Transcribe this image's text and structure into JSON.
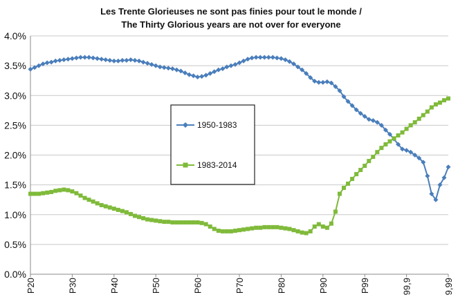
{
  "chart_data": {
    "type": "line",
    "title_lines": [
      "Les Trente Glorieuses ne sont pas finies pour tout le monde /",
      "The Thirty Glorious years are not over for everyone"
    ],
    "xlabel": "",
    "ylabel": "",
    "ylim": [
      0,
      4.0
    ],
    "y_ticks": [
      "0.0%",
      "0.5%",
      "1.0%",
      "1.5%",
      "2.0%",
      "2.5%",
      "3.0%",
      "3.5%",
      "4.0%"
    ],
    "x_tick_labels": [
      "P20",
      "P30",
      "P40",
      "P50",
      "P60",
      "P70",
      "P80",
      "P90",
      "P99",
      "99,9",
      "9,99"
    ],
    "grid": "horizontal",
    "legend_position": "center",
    "series": [
      {
        "name": "1950-1983",
        "color": "#4a7ebb",
        "marker": "diamond",
        "values": [
          [
            0,
            3.44
          ],
          [
            1,
            3.47
          ],
          [
            2,
            3.5
          ],
          [
            3,
            3.53
          ],
          [
            4,
            3.55
          ],
          [
            5,
            3.56
          ],
          [
            6,
            3.58
          ],
          [
            7,
            3.59
          ],
          [
            8,
            3.6
          ],
          [
            9,
            3.61
          ],
          [
            10,
            3.62
          ],
          [
            11,
            3.63
          ],
          [
            12,
            3.64
          ],
          [
            13,
            3.64
          ],
          [
            14,
            3.64
          ],
          [
            15,
            3.63
          ],
          [
            16,
            3.62
          ],
          [
            17,
            3.61
          ],
          [
            18,
            3.6
          ],
          [
            19,
            3.59
          ],
          [
            20,
            3.58
          ],
          [
            21,
            3.58
          ],
          [
            22,
            3.59
          ],
          [
            23,
            3.59
          ],
          [
            24,
            3.6
          ],
          [
            25,
            3.59
          ],
          [
            26,
            3.58
          ],
          [
            27,
            3.56
          ],
          [
            28,
            3.54
          ],
          [
            29,
            3.52
          ],
          [
            30,
            3.5
          ],
          [
            31,
            3.48
          ],
          [
            32,
            3.47
          ],
          [
            33,
            3.46
          ],
          [
            34,
            3.45
          ],
          [
            35,
            3.43
          ],
          [
            36,
            3.41
          ],
          [
            37,
            3.38
          ],
          [
            38,
            3.35
          ],
          [
            39,
            3.33
          ],
          [
            40,
            3.31
          ],
          [
            41,
            3.32
          ],
          [
            42,
            3.34
          ],
          [
            43,
            3.37
          ],
          [
            44,
            3.4
          ],
          [
            45,
            3.43
          ],
          [
            46,
            3.45
          ],
          [
            47,
            3.48
          ],
          [
            48,
            3.5
          ],
          [
            49,
            3.52
          ],
          [
            50,
            3.55
          ],
          [
            51,
            3.58
          ],
          [
            52,
            3.61
          ],
          [
            53,
            3.63
          ],
          [
            54,
            3.64
          ],
          [
            55,
            3.64
          ],
          [
            56,
            3.64
          ],
          [
            57,
            3.64
          ],
          [
            58,
            3.64
          ],
          [
            59,
            3.63
          ],
          [
            60,
            3.62
          ],
          [
            61,
            3.6
          ],
          [
            62,
            3.57
          ],
          [
            63,
            3.53
          ],
          [
            64,
            3.48
          ],
          [
            65,
            3.43
          ],
          [
            66,
            3.37
          ],
          [
            67,
            3.3
          ],
          [
            68,
            3.24
          ],
          [
            69,
            3.22
          ],
          [
            70,
            3.22
          ],
          [
            71,
            3.23
          ],
          [
            72,
            3.21
          ],
          [
            73,
            3.15
          ],
          [
            74,
            3.08
          ],
          [
            75,
            2.98
          ],
          [
            76,
            2.9
          ],
          [
            77,
            2.83
          ],
          [
            78,
            2.76
          ],
          [
            79,
            2.7
          ],
          [
            80,
            2.65
          ],
          [
            81,
            2.6
          ],
          [
            82,
            2.58
          ],
          [
            83,
            2.55
          ],
          [
            84,
            2.5
          ],
          [
            85,
            2.42
          ],
          [
            86,
            2.35
          ],
          [
            87,
            2.27
          ],
          [
            88,
            2.18
          ],
          [
            89,
            2.1
          ],
          [
            90,
            2.08
          ],
          [
            91,
            2.05
          ],
          [
            92,
            2.0
          ],
          [
            93,
            1.95
          ],
          [
            94,
            1.88
          ],
          [
            95,
            1.65
          ],
          [
            96,
            1.35
          ],
          [
            97,
            1.25
          ],
          [
            98,
            1.5
          ],
          [
            99,
            1.62
          ],
          [
            100,
            1.8
          ]
        ]
      },
      {
        "name": "1983-2014",
        "color": "#7fba3a",
        "marker": "square",
        "values": [
          [
            0,
            1.35
          ],
          [
            1,
            1.35
          ],
          [
            2,
            1.35
          ],
          [
            3,
            1.36
          ],
          [
            4,
            1.37
          ],
          [
            5,
            1.38
          ],
          [
            6,
            1.4
          ],
          [
            7,
            1.41
          ],
          [
            8,
            1.42
          ],
          [
            9,
            1.41
          ],
          [
            10,
            1.39
          ],
          [
            11,
            1.36
          ],
          [
            12,
            1.32
          ],
          [
            13,
            1.28
          ],
          [
            14,
            1.25
          ],
          [
            15,
            1.22
          ],
          [
            16,
            1.19
          ],
          [
            17,
            1.16
          ],
          [
            18,
            1.14
          ],
          [
            19,
            1.12
          ],
          [
            20,
            1.1
          ],
          [
            21,
            1.08
          ],
          [
            22,
            1.06
          ],
          [
            23,
            1.04
          ],
          [
            24,
            1.01
          ],
          [
            25,
            0.98
          ],
          [
            26,
            0.96
          ],
          [
            27,
            0.94
          ],
          [
            28,
            0.92
          ],
          [
            29,
            0.91
          ],
          [
            30,
            0.9
          ],
          [
            31,
            0.89
          ],
          [
            32,
            0.88
          ],
          [
            33,
            0.88
          ],
          [
            34,
            0.87
          ],
          [
            35,
            0.87
          ],
          [
            36,
            0.87
          ],
          [
            37,
            0.87
          ],
          [
            38,
            0.87
          ],
          [
            39,
            0.87
          ],
          [
            40,
            0.87
          ],
          [
            41,
            0.86
          ],
          [
            42,
            0.84
          ],
          [
            43,
            0.8
          ],
          [
            44,
            0.76
          ],
          [
            45,
            0.73
          ],
          [
            46,
            0.72
          ],
          [
            47,
            0.72
          ],
          [
            48,
            0.72
          ],
          [
            49,
            0.73
          ],
          [
            50,
            0.74
          ],
          [
            51,
            0.75
          ],
          [
            52,
            0.76
          ],
          [
            53,
            0.77
          ],
          [
            54,
            0.78
          ],
          [
            55,
            0.78
          ],
          [
            56,
            0.79
          ],
          [
            57,
            0.79
          ],
          [
            58,
            0.79
          ],
          [
            59,
            0.79
          ],
          [
            60,
            0.78
          ],
          [
            61,
            0.77
          ],
          [
            62,
            0.76
          ],
          [
            63,
            0.74
          ],
          [
            64,
            0.72
          ],
          [
            65,
            0.7
          ],
          [
            66,
            0.69
          ],
          [
            67,
            0.72
          ],
          [
            68,
            0.8
          ],
          [
            69,
            0.84
          ],
          [
            70,
            0.8
          ],
          [
            71,
            0.78
          ],
          [
            72,
            0.85
          ],
          [
            73,
            1.05
          ],
          [
            74,
            1.35
          ],
          [
            75,
            1.45
          ],
          [
            76,
            1.52
          ],
          [
            77,
            1.6
          ],
          [
            78,
            1.68
          ],
          [
            79,
            1.75
          ],
          [
            80,
            1.82
          ],
          [
            81,
            1.9
          ],
          [
            82,
            1.97
          ],
          [
            83,
            2.05
          ],
          [
            84,
            2.12
          ],
          [
            85,
            2.18
          ],
          [
            86,
            2.23
          ],
          [
            87,
            2.28
          ],
          [
            88,
            2.33
          ],
          [
            89,
            2.38
          ],
          [
            90,
            2.44
          ],
          [
            91,
            2.5
          ],
          [
            92,
            2.55
          ],
          [
            93,
            2.61
          ],
          [
            94,
            2.67
          ],
          [
            95,
            2.73
          ],
          [
            96,
            2.8
          ],
          [
            97,
            2.85
          ],
          [
            98,
            2.88
          ],
          [
            99,
            2.92
          ],
          [
            100,
            2.95
          ]
        ]
      }
    ]
  }
}
